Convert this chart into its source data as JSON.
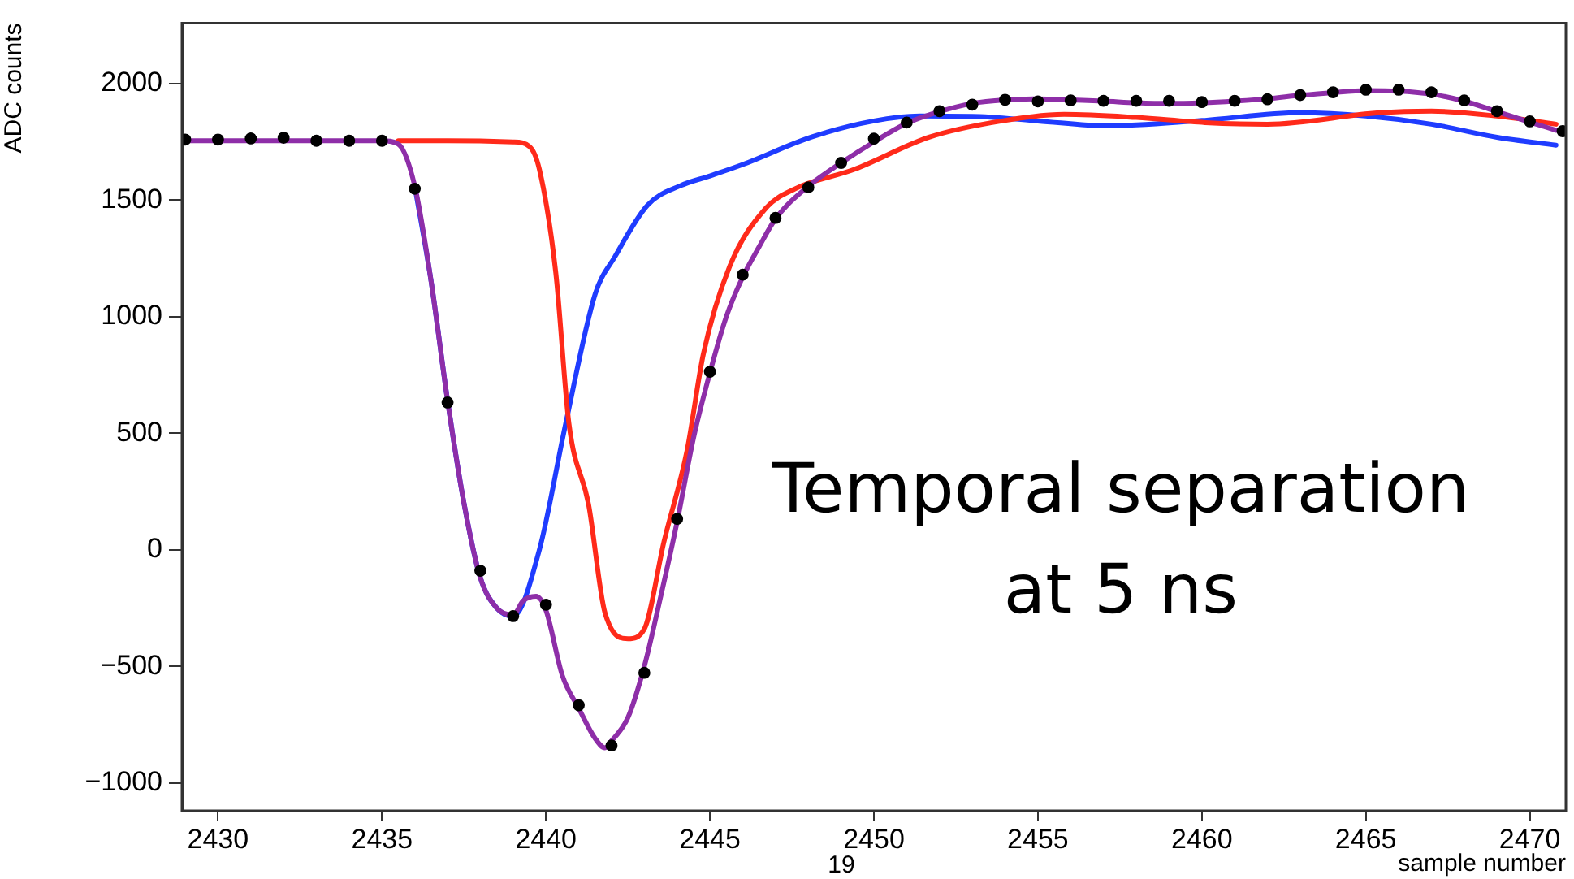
{
  "chart_data": {
    "type": "line",
    "xlabel": "sample number",
    "ylabel": "ADC counts",
    "xlim": [
      2428.9,
      2471.1
    ],
    "ylim": [
      -1120,
      2260
    ],
    "xticks": [
      2430,
      2435,
      2440,
      2445,
      2450,
      2455,
      2460,
      2465,
      2470
    ],
    "yticks": [
      -1000,
      -500,
      0,
      500,
      1000,
      1500,
      2000
    ],
    "grid": false,
    "legend": false,
    "line_style": "solid",
    "annotations": [
      "Temporal separation at 5 ns",
      "19"
    ],
    "series": [
      {
        "type": "line",
        "color": "#1f3cff",
        "x": [
          2436,
          2436.5,
          2437,
          2437.5,
          2438,
          2438.5,
          2439,
          2439.8,
          2440.6,
          2441.5,
          2442.1,
          2443.1,
          2444.1,
          2445,
          2446,
          2448.1,
          2450,
          2451.4,
          2453,
          2455,
          2457.1,
          2460,
          2463,
          2465,
          2467,
          2469,
          2470.8
        ],
        "values": [
          1560,
          1150,
          640,
          200,
          -120,
          -250,
          -285,
          0,
          540,
          1097,
          1257,
          1479,
          1562,
          1604,
          1653,
          1771,
          1840,
          1861,
          1860,
          1840,
          1819,
          1842,
          1875,
          1861,
          1826,
          1770,
          1736
        ]
      },
      {
        "type": "line",
        "color": "#ff2a1a",
        "x": [
          2435.5,
          2437,
          2439,
          2439.5,
          2439.8,
          2440.3,
          2440.7,
          2441.3,
          2441.8,
          2442.5,
          2443,
          2443.6,
          2444.3,
          2444.8,
          2445.6,
          2446.7,
          2447.6,
          2449.4,
          2451.7,
          2453.9,
          2455.8,
          2458,
          2460.1,
          2462,
          2465.4,
          2467,
          2469,
          2470.8
        ],
        "values": [
          1755,
          1755,
          1750,
          1730,
          1632,
          1188,
          542,
          194,
          -271,
          -382,
          -340,
          35,
          424,
          840,
          1215,
          1465,
          1549,
          1632,
          1771,
          1840,
          1868,
          1855,
          1833,
          1826,
          1875,
          1882,
          1861,
          1826
        ]
      },
      {
        "type": "line",
        "color": "#8e2ea8",
        "x": [
          2429,
          2430,
          2431,
          2432,
          2433,
          2434,
          2435,
          2435.5,
          2436,
          2436.5,
          2437,
          2437.5,
          2438,
          2438.5,
          2439,
          2439.3,
          2439.7,
          2440,
          2440.5,
          2441,
          2441.5,
          2441.8,
          2442,
          2442.5,
          2443,
          2443.5,
          2444,
          2444.5,
          2445,
          2445.5,
          2446,
          2446.5,
          2447,
          2448,
          2449,
          2450,
          2451,
          2452,
          2453,
          2454,
          2455,
          2456,
          2457,
          2458,
          2459,
          2460,
          2461,
          2462,
          2463,
          2464,
          2465,
          2466,
          2467,
          2468,
          2469,
          2470,
          2470.8
        ],
        "values": [
          1755,
          1755,
          1755,
          1755,
          1755,
          1755,
          1755,
          1740,
          1560,
          1150,
          640,
          200,
          -120,
          -250,
          -280,
          -220,
          -200,
          -260,
          -540,
          -680,
          -810,
          -850,
          -820,
          -720,
          -500,
          -200,
          120,
          480,
          760,
          1000,
          1170,
          1300,
          1420,
          1560,
          1660,
          1750,
          1830,
          1880,
          1915,
          1930,
          1935,
          1930,
          1925,
          1918,
          1915,
          1918,
          1925,
          1935,
          1950,
          1962,
          1970,
          1968,
          1955,
          1925,
          1880,
          1835,
          1800
        ]
      },
      {
        "type": "scatter",
        "color": "#000000",
        "marker": "circle",
        "x": [
          2429,
          2430,
          2431,
          2432,
          2433,
          2434,
          2435,
          2436,
          2437,
          2438,
          2439,
          2440,
          2441,
          2442,
          2443,
          2444,
          2445,
          2446,
          2447,
          2448,
          2449,
          2450,
          2451,
          2452,
          2453,
          2454,
          2455,
          2456,
          2457,
          2458,
          2459,
          2460,
          2461,
          2462,
          2463,
          2464,
          2465,
          2466,
          2467,
          2468,
          2469,
          2470,
          2471
        ],
        "values": [
          1760,
          1760,
          1765,
          1768,
          1755,
          1755,
          1755,
          1549,
          632,
          -90,
          -285,
          -236,
          -667,
          -840,
          -528,
          132,
          764,
          1180,
          1424,
          1555,
          1660,
          1764,
          1833,
          1882,
          1910,
          1931,
          1924,
          1928,
          1926,
          1926,
          1926,
          1921,
          1926,
          1933,
          1951,
          1963,
          1974,
          1974,
          1963,
          1928,
          1882,
          1838,
          1796
        ]
      }
    ]
  }
}
